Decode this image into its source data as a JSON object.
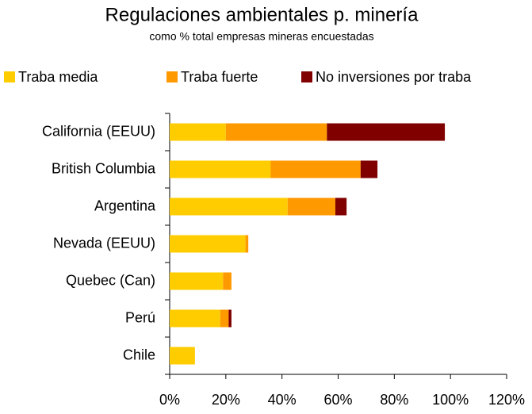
{
  "chart_data": {
    "type": "stacked_bar_horizontal",
    "title": "Regulaciones ambientales p. minería",
    "subtitle": "como % total empresas mineras encuestadas",
    "categories": [
      "California (EEUU)",
      "British Columbia",
      "Argentina",
      "Nevada (EEUU)",
      "Quebec  (Can)",
      "Perú",
      "Chile"
    ],
    "series": [
      {
        "name": "Traba media",
        "color": "#ffcc00",
        "values": [
          20,
          36,
          42,
          27,
          19,
          18,
          9
        ]
      },
      {
        "name": "Traba fuerte",
        "color": "#ff9900",
        "values": [
          36,
          32,
          17,
          1,
          3,
          3,
          0
        ]
      },
      {
        "name": "No inversiones por traba",
        "color": "#800000",
        "values": [
          42,
          6,
          4,
          0,
          0,
          1,
          0
        ]
      }
    ],
    "xlim": [
      0,
      120
    ],
    "xticks": [
      {
        "value": 0,
        "label": "0%"
      },
      {
        "value": 20,
        "label": "20%"
      },
      {
        "value": 40,
        "label": "40%"
      },
      {
        "value": 60,
        "label": "60%"
      },
      {
        "value": 80,
        "label": "80%"
      },
      {
        "value": 100,
        "label": "100%"
      },
      {
        "value": 120,
        "label": "120%"
      }
    ],
    "grid": false,
    "legend": "top"
  }
}
